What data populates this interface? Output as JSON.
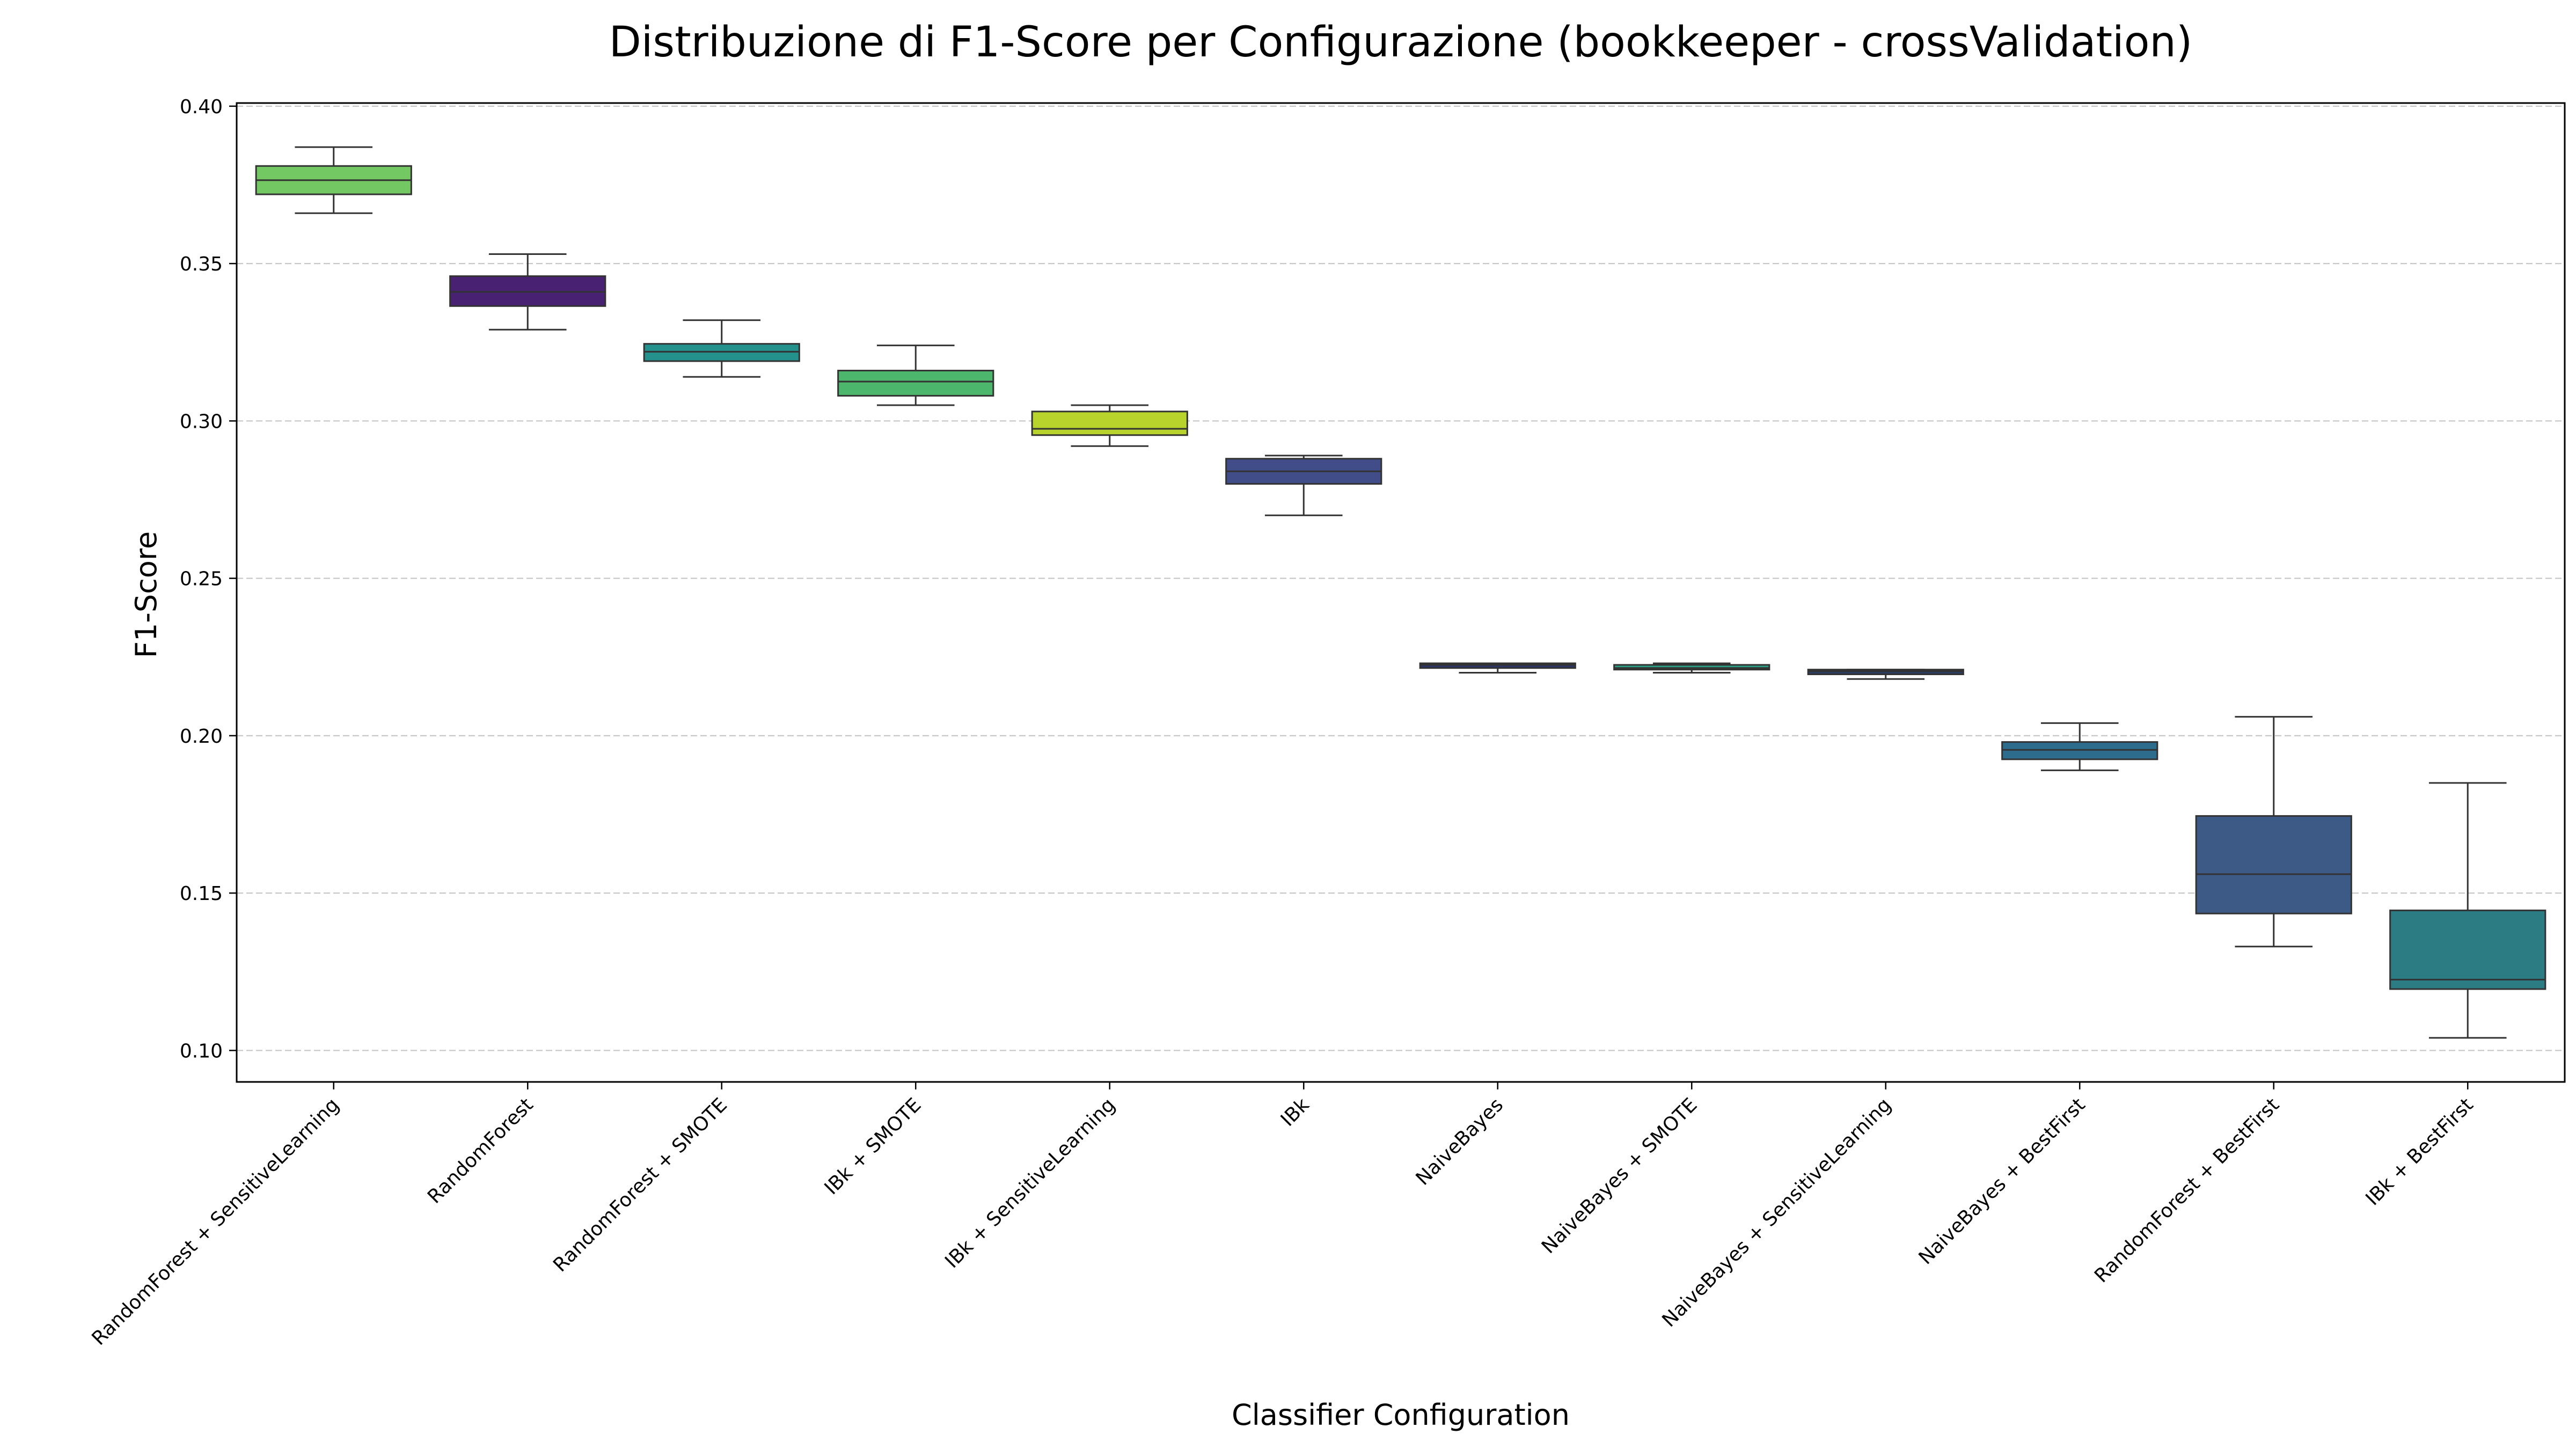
{
  "chart_data": {
    "type": "box",
    "title": "Distribuzione di F1-Score per Configurazione (bookkeeper - crossValidation)",
    "xlabel": "Classifier Configuration",
    "ylabel": "F1-Score",
    "ylim": [
      0.09,
      0.401
    ],
    "yticks": [
      "0.10",
      "0.15",
      "0.20",
      "0.25",
      "0.30",
      "0.35",
      "0.40"
    ],
    "grid": "horizontal dashed",
    "categories": [
      "RandomForest + SensitiveLearning",
      "RandomForest",
      "RandomForest + SMOTE",
      "IBk + SMOTE",
      "IBk + SensitiveLearning",
      "IBk",
      "NaiveBayes",
      "NaiveBayes + SMOTE",
      "NaiveBayes + SensitiveLearning",
      "NaiveBayes + BestFirst",
      "RandomForest + BestFirst",
      "IBk + BestFirst"
    ],
    "boxes": [
      {
        "min": 0.366,
        "q1": 0.372,
        "median": 0.3765,
        "q3": 0.381,
        "max": 0.387,
        "color": "#74c864"
      },
      {
        "min": 0.329,
        "q1": 0.3365,
        "median": 0.341,
        "q3": 0.346,
        "max": 0.353,
        "color": "#482172"
      },
      {
        "min": 0.314,
        "q1": 0.319,
        "median": 0.322,
        "q3": 0.3245,
        "max": 0.332,
        "color": "#24918c"
      },
      {
        "min": 0.305,
        "q1": 0.308,
        "median": 0.3125,
        "q3": 0.316,
        "max": 0.324,
        "color": "#4cb66c"
      },
      {
        "min": 0.292,
        "q1": 0.2955,
        "median": 0.2975,
        "q3": 0.303,
        "max": 0.305,
        "color": "#b8d42c"
      },
      {
        "min": 0.27,
        "q1": 0.28,
        "median": 0.284,
        "q3": 0.288,
        "max": 0.289,
        "color": "#404d88"
      },
      {
        "min": 0.22,
        "q1": 0.2215,
        "median": 0.2225,
        "q3": 0.223,
        "max": 0.223,
        "color": "#2b3565"
      },
      {
        "min": 0.22,
        "q1": 0.221,
        "median": 0.2215,
        "q3": 0.2225,
        "max": 0.223,
        "color": "#2e9f87"
      },
      {
        "min": 0.218,
        "q1": 0.2195,
        "median": 0.2205,
        "q3": 0.221,
        "max": 0.221,
        "color": "#2a3d63"
      },
      {
        "min": 0.189,
        "q1": 0.1925,
        "median": 0.1955,
        "q3": 0.198,
        "max": 0.204,
        "color": "#2d6c8d"
      },
      {
        "min": 0.133,
        "q1": 0.1435,
        "median": 0.156,
        "q3": 0.1745,
        "max": 0.206,
        "color": "#3c5a85"
      },
      {
        "min": 0.104,
        "q1": 0.1195,
        "median": 0.1225,
        "q3": 0.1445,
        "max": 0.185,
        "color": "#2c7c83"
      }
    ]
  }
}
